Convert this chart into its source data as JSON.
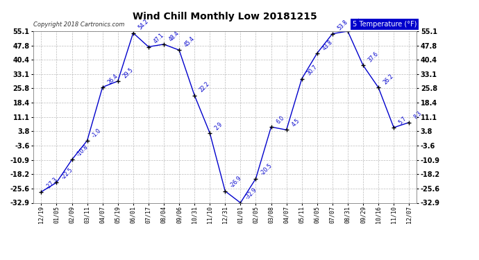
{
  "title": "Wind Chill Monthly Low 20181215",
  "copyright": "Copyright 2018 Cartronics.com",
  "legend_label": "5 Temperature (°F)",
  "x_labels": [
    "12/19",
    "01/05",
    "02/09",
    "03/11",
    "04/07",
    "05/19",
    "06/01",
    "07/17",
    "08/04",
    "09/06",
    "10/31",
    "11/10",
    "12/31",
    "01/01",
    "02/05",
    "03/08",
    "04/07",
    "05/11",
    "06/05",
    "07/07",
    "08/31",
    "09/29",
    "10/16",
    "11/10",
    "12/07"
  ],
  "y_values": [
    -27.3,
    -22.5,
    -10.8,
    -1.0,
    26.4,
    29.5,
    54.2,
    47.1,
    48.4,
    45.4,
    22.2,
    2.9,
    -26.9,
    -32.9,
    -20.5,
    6.0,
    4.5,
    30.7,
    43.8,
    53.8,
    55.1,
    37.6,
    26.2,
    5.7,
    8.3
  ],
  "y_ticks": [
    55.1,
    47.8,
    40.4,
    33.1,
    25.8,
    18.4,
    11.1,
    3.8,
    -3.6,
    -10.9,
    -18.2,
    -25.6,
    -32.9
  ],
  "ylim_min": -32.9,
  "ylim_max": 55.1,
  "line_color": "#0000cc",
  "marker_color": "#000000",
  "label_color": "#0000cc",
  "bg_color": "#ffffff",
  "grid_color": "#aaaaaa",
  "title_color": "#000000",
  "legend_bg": "#0000cc",
  "legend_fg": "#ffffff"
}
